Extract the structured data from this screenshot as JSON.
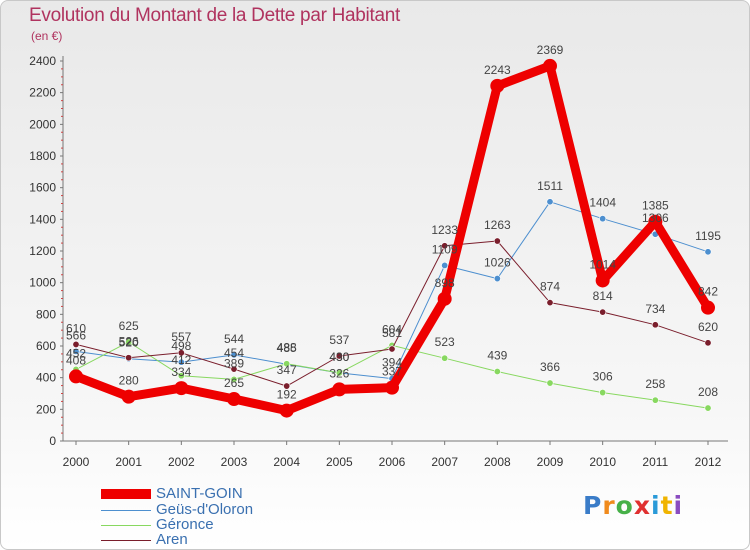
{
  "header": {
    "title": "Evolution du Montant de la Dette par Habitant",
    "subtitle": "(en €)"
  },
  "logo": {
    "text": "Proxiti"
  },
  "chart_data": {
    "type": "line",
    "categories": [
      "2000",
      "2001",
      "2002",
      "2003",
      "2004",
      "2005",
      "2006",
      "2007",
      "2008",
      "2009",
      "2010",
      "2011",
      "2012"
    ],
    "ylim": [
      0,
      2400
    ],
    "yticks": [
      0,
      200,
      400,
      600,
      800,
      1000,
      1200,
      1400,
      1600,
      1800,
      2000,
      2200,
      2400
    ],
    "grid": false,
    "legend_position": "bottom-left",
    "series": [
      {
        "name": "SAINT-GOIN",
        "color": "#ee0000",
        "values": [
          408,
          280,
          334,
          265,
          192,
          326,
          337,
          898,
          2243,
          2369,
          1014,
          1385,
          842
        ],
        "labels": [
          "408",
          "280",
          "334",
          "265",
          "192",
          "326",
          "337",
          "898",
          "2243",
          "2369",
          "1014",
          "1385",
          "842"
        ]
      },
      {
        "name": "Geüs-d'Oloron",
        "color": "#4d8fcf",
        "values": [
          566,
          520,
          498,
          544,
          485,
          430,
          394,
          1109,
          1026,
          1511,
          1404,
          1306,
          1195
        ],
        "labels": [
          "566",
          "520",
          "498",
          "544",
          "485",
          "430",
          "394",
          "1109",
          "1026",
          "1511",
          "1404",
          "1306",
          "1195"
        ]
      },
      {
        "name": "Géronce",
        "color": "#88d860",
        "values": [
          452,
          625,
          412,
          389,
          488,
          430,
          604,
          523,
          439,
          366,
          306,
          258,
          208
        ],
        "labels": [
          "452",
          "625",
          "412",
          "389",
          "488",
          "430",
          "604",
          "523",
          "439",
          "366",
          "306",
          "258",
          "208"
        ]
      },
      {
        "name": "Aren",
        "color": "#7a1e2c",
        "values": [
          610,
          526,
          557,
          454,
          347,
          537,
          581,
          1233,
          1263,
          874,
          814,
          734,
          620
        ],
        "labels": [
          "610",
          "526",
          "557",
          "454",
          "347",
          "537",
          "581",
          "1233",
          "1263",
          "874",
          "814",
          "734",
          "620"
        ]
      }
    ]
  }
}
